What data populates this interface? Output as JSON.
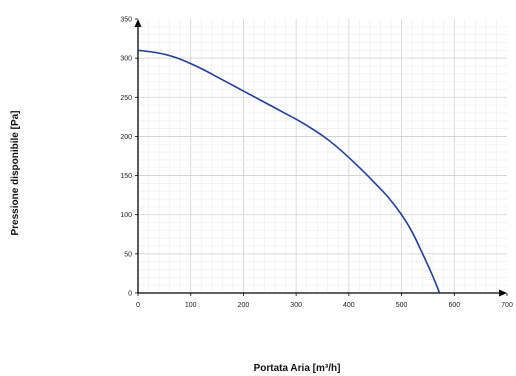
{
  "chart_data": {
    "type": "line",
    "title": "",
    "xlabel": "Portata Aria [m³/h]",
    "ylabel": "Pressione disponibile [Pa]",
    "xlim": [
      0,
      700
    ],
    "ylim": [
      0,
      350
    ],
    "x_ticks": [
      "0",
      "100",
      "200",
      "300",
      "400",
      "500",
      "600",
      "700"
    ],
    "y_ticks": [
      "0",
      "50",
      "100",
      "150",
      "200",
      "250",
      "300",
      "350"
    ],
    "grid": true,
    "minor_grid": true,
    "legend": "none",
    "series": [
      {
        "color": "#1f3f9a",
        "x": [
          0,
          25,
          50,
          75,
          100,
          125,
          150,
          175,
          200,
          225,
          250,
          275,
          300,
          325,
          350,
          375,
          400,
          425,
          450,
          475,
          500,
          520,
          540,
          555,
          565,
          572
        ],
        "y": [
          310,
          308,
          305,
          300,
          293,
          285,
          276,
          267,
          258,
          249,
          240,
          231,
          222,
          212,
          201,
          188,
          173,
          157,
          140,
          122,
          100,
          78,
          50,
          28,
          12,
          0
        ]
      }
    ]
  }
}
